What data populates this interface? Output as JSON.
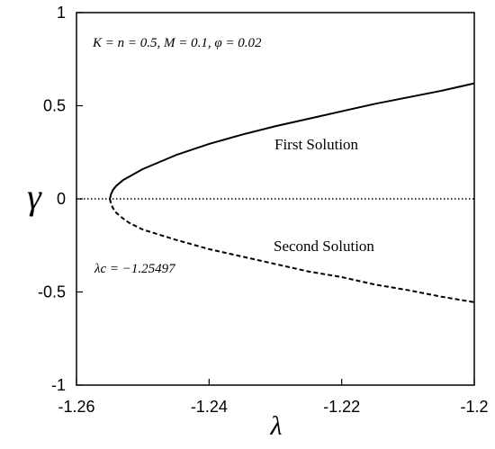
{
  "chart_data": {
    "type": "line",
    "title": "",
    "xlabel": "λ",
    "ylabel": "γ",
    "xlim": [
      -1.26,
      -1.2
    ],
    "ylim": [
      -1,
      1
    ],
    "xticks": [
      -1.26,
      -1.24,
      -1.22,
      -1.2
    ],
    "xtick_labels": [
      "-1.26",
      "-1.24",
      "-1.22",
      "-1.2"
    ],
    "yticks": [
      -1,
      -0.5,
      0,
      0.5,
      1
    ],
    "ytick_labels": [
      "-1",
      "-0.5",
      "0",
      "0.5",
      "1"
    ],
    "grid": false,
    "params_label": "K = n = 0.5, M = 0.1, φ = 0.02",
    "lambda_c_label": "λc = −1.25497",
    "lambda_c": -1.25497,
    "series": [
      {
        "name": "First Solution",
        "style": "solid",
        "x": [
          -1.25497,
          -1.2548,
          -1.2545,
          -1.254,
          -1.253,
          -1.252,
          -1.25,
          -1.245,
          -1.24,
          -1.235,
          -1.23,
          -1.225,
          -1.22,
          -1.215,
          -1.21,
          -1.205,
          -1.2
        ],
        "y": [
          0.0,
          0.024,
          0.048,
          0.07,
          0.1,
          0.12,
          0.16,
          0.235,
          0.295,
          0.345,
          0.39,
          0.43,
          0.47,
          0.51,
          0.545,
          0.58,
          0.62
        ]
      },
      {
        "name": "Second Solution",
        "style": "dashed",
        "x": [
          -1.25497,
          -1.2548,
          -1.2545,
          -1.254,
          -1.253,
          -1.252,
          -1.25,
          -1.245,
          -1.24,
          -1.235,
          -1.23,
          -1.225,
          -1.22,
          -1.215,
          -1.21,
          -1.205,
          -1.2
        ],
        "y": [
          0.0,
          -0.025,
          -0.05,
          -0.075,
          -0.105,
          -0.13,
          -0.165,
          -0.22,
          -0.27,
          -0.31,
          -0.35,
          -0.39,
          -0.42,
          -0.46,
          -0.49,
          -0.525,
          -0.555
        ]
      },
      {
        "name": "",
        "style": "dotted",
        "x": [
          -1.26,
          -1.2
        ],
        "y": [
          0,
          0
        ]
      }
    ]
  }
}
